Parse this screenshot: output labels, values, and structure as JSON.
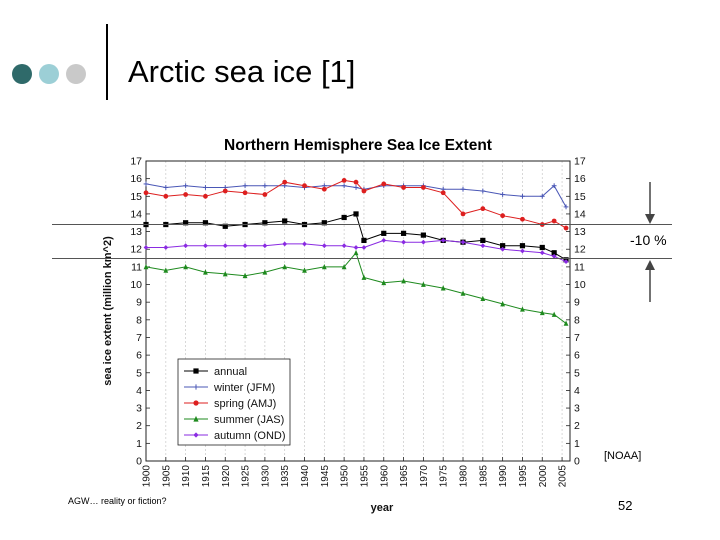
{
  "slide": {
    "title": "Arctic sea ice [1]",
    "pct_change": "-10 %",
    "source": "[NOAA]",
    "footer_left": "AGW… reality or fiction?",
    "page_number": "52",
    "dot_colors": [
      "#2f6a6a",
      "#9ccfd6",
      "#c9c9c9"
    ]
  },
  "chart_data": {
    "type": "line",
    "title": "Northern Hemisphere Sea Ice Extent",
    "xlabel": "year",
    "ylabel": "sea ice extent (million km^2)",
    "xlim": [
      1900,
      2007
    ],
    "ylim": [
      0,
      17
    ],
    "x_ticks": [
      1900,
      1905,
      1910,
      1915,
      1920,
      1925,
      1930,
      1935,
      1940,
      1945,
      1950,
      1955,
      1960,
      1965,
      1970,
      1975,
      1980,
      1985,
      1990,
      1995,
      2000,
      2005
    ],
    "y_ticks": [
      0,
      1,
      2,
      3,
      4,
      5,
      6,
      7,
      8,
      9,
      10,
      11,
      12,
      13,
      14,
      15,
      16,
      17
    ],
    "grid": "vertical dashed",
    "legend_position": "bottom-left",
    "series": [
      {
        "name": "annual",
        "color": "#000000",
        "marker": "square",
        "points": [
          [
            1900,
            13.4
          ],
          [
            1905,
            13.4
          ],
          [
            1910,
            13.5
          ],
          [
            1915,
            13.5
          ],
          [
            1920,
            13.3
          ],
          [
            1925,
            13.4
          ],
          [
            1930,
            13.5
          ],
          [
            1935,
            13.6
          ],
          [
            1940,
            13.4
          ],
          [
            1945,
            13.5
          ],
          [
            1950,
            13.8
          ],
          [
            1953,
            14.0
          ],
          [
            1955,
            12.5
          ],
          [
            1960,
            12.9
          ],
          [
            1965,
            12.9
          ],
          [
            1970,
            12.8
          ],
          [
            1975,
            12.5
          ],
          [
            1980,
            12.4
          ],
          [
            1985,
            12.5
          ],
          [
            1990,
            12.2
          ],
          [
            1995,
            12.2
          ],
          [
            2000,
            12.1
          ],
          [
            2003,
            11.8
          ],
          [
            2006,
            11.4
          ]
        ]
      },
      {
        "name": "winter (JFM)",
        "color": "#4a57b6",
        "marker": "plus",
        "points": [
          [
            1900,
            15.7
          ],
          [
            1905,
            15.5
          ],
          [
            1910,
            15.6
          ],
          [
            1915,
            15.5
          ],
          [
            1920,
            15.5
          ],
          [
            1925,
            15.6
          ],
          [
            1930,
            15.6
          ],
          [
            1935,
            15.6
          ],
          [
            1940,
            15.5
          ],
          [
            1945,
            15.6
          ],
          [
            1950,
            15.6
          ],
          [
            1953,
            15.5
          ],
          [
            1955,
            15.4
          ],
          [
            1960,
            15.6
          ],
          [
            1965,
            15.6
          ],
          [
            1970,
            15.6
          ],
          [
            1975,
            15.4
          ],
          [
            1980,
            15.4
          ],
          [
            1985,
            15.3
          ],
          [
            1990,
            15.1
          ],
          [
            1995,
            15.0
          ],
          [
            2000,
            15.0
          ],
          [
            2003,
            15.6
          ],
          [
            2006,
            14.4
          ]
        ]
      },
      {
        "name": "spring (AMJ)",
        "color": "#dd1f1f",
        "marker": "circle",
        "points": [
          [
            1900,
            15.2
          ],
          [
            1905,
            15.0
          ],
          [
            1910,
            15.1
          ],
          [
            1915,
            15.0
          ],
          [
            1920,
            15.3
          ],
          [
            1925,
            15.2
          ],
          [
            1930,
            15.1
          ],
          [
            1935,
            15.8
          ],
          [
            1940,
            15.6
          ],
          [
            1945,
            15.4
          ],
          [
            1950,
            15.9
          ],
          [
            1953,
            15.8
          ],
          [
            1955,
            15.3
          ],
          [
            1960,
            15.7
          ],
          [
            1965,
            15.5
          ],
          [
            1970,
            15.5
          ],
          [
            1975,
            15.2
          ],
          [
            1980,
            14.0
          ],
          [
            1985,
            14.3
          ],
          [
            1990,
            13.9
          ],
          [
            1995,
            13.7
          ],
          [
            2000,
            13.4
          ],
          [
            2003,
            13.6
          ],
          [
            2006,
            13.2
          ]
        ]
      },
      {
        "name": "summer (JAS)",
        "color": "#1e8a1e",
        "marker": "triangle",
        "points": [
          [
            1900,
            11.0
          ],
          [
            1905,
            10.8
          ],
          [
            1910,
            11.0
          ],
          [
            1915,
            10.7
          ],
          [
            1920,
            10.6
          ],
          [
            1925,
            10.5
          ],
          [
            1930,
            10.7
          ],
          [
            1935,
            11.0
          ],
          [
            1940,
            10.8
          ],
          [
            1945,
            11.0
          ],
          [
            1950,
            11.0
          ],
          [
            1953,
            11.8
          ],
          [
            1955,
            10.4
          ],
          [
            1960,
            10.1
          ],
          [
            1965,
            10.2
          ],
          [
            1970,
            10.0
          ],
          [
            1975,
            9.8
          ],
          [
            1980,
            9.5
          ],
          [
            1985,
            9.2
          ],
          [
            1990,
            8.9
          ],
          [
            1995,
            8.6
          ],
          [
            2000,
            8.4
          ],
          [
            2003,
            8.3
          ],
          [
            2006,
            7.8
          ]
        ]
      },
      {
        "name": "autumn (OND)",
        "color": "#8a2be2",
        "marker": "diamond",
        "points": [
          [
            1900,
            12.1
          ],
          [
            1905,
            12.1
          ],
          [
            1910,
            12.2
          ],
          [
            1915,
            12.2
          ],
          [
            1920,
            12.2
          ],
          [
            1925,
            12.2
          ],
          [
            1930,
            12.2
          ],
          [
            1935,
            12.3
          ],
          [
            1940,
            12.3
          ],
          [
            1945,
            12.2
          ],
          [
            1950,
            12.2
          ],
          [
            1953,
            12.1
          ],
          [
            1955,
            12.1
          ],
          [
            1960,
            12.5
          ],
          [
            1965,
            12.4
          ],
          [
            1970,
            12.4
          ],
          [
            1975,
            12.5
          ],
          [
            1980,
            12.4
          ],
          [
            1985,
            12.2
          ],
          [
            1990,
            12.0
          ],
          [
            1995,
            11.9
          ],
          [
            2000,
            11.8
          ],
          [
            2003,
            11.6
          ],
          [
            2006,
            11.3
          ]
        ]
      }
    ]
  }
}
